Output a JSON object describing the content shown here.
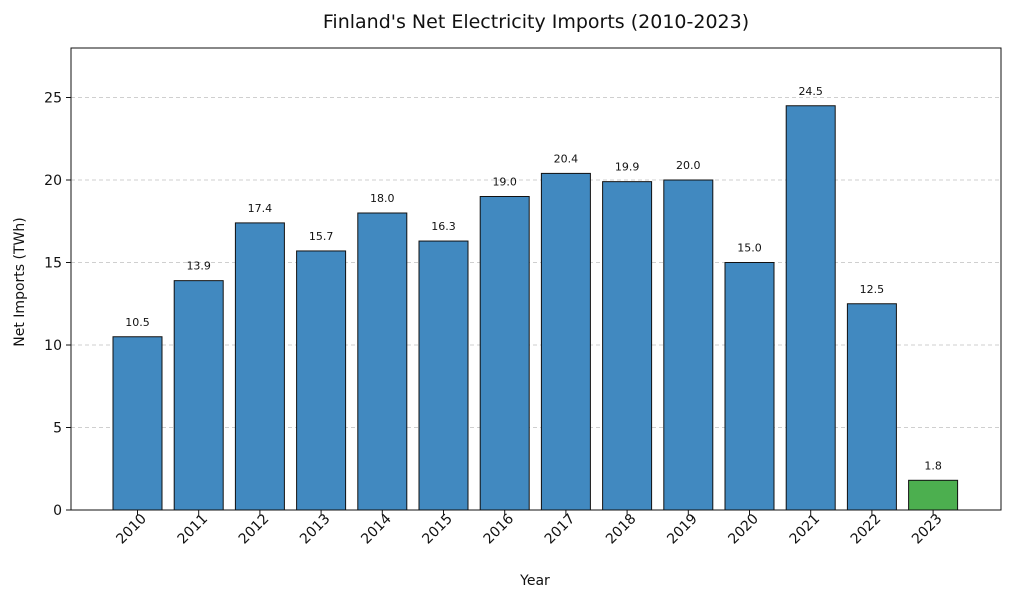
{
  "chart_data": {
    "type": "bar",
    "title": "Finland's Net Electricity Imports (2010-2023)",
    "xlabel": "Year",
    "ylabel": "Net Imports (TWh)",
    "categories": [
      "2010",
      "2011",
      "2012",
      "2013",
      "2014",
      "2015",
      "2016",
      "2017",
      "2018",
      "2019",
      "2020",
      "2021",
      "2022",
      "2023"
    ],
    "values": [
      10.5,
      13.9,
      17.4,
      15.7,
      18.0,
      16.3,
      19.0,
      20.4,
      19.9,
      20.0,
      15.0,
      24.5,
      12.5,
      1.8
    ],
    "data_labels": [
      "10.5",
      "13.9",
      "17.4",
      "15.7",
      "18.0",
      "16.3",
      "19.0",
      "20.4",
      "19.9",
      "20.0",
      "15.0",
      "24.5",
      "12.5",
      "1.8"
    ],
    "yticks": [
      0,
      5,
      10,
      15,
      20,
      25
    ],
    "ylim": [
      0,
      28
    ],
    "grid": "y-dashed",
    "colors": {
      "default_bar": "#4189c0",
      "highlight_bar": "#4caf4f",
      "highlight_index": 13,
      "edge": "#111111"
    }
  }
}
